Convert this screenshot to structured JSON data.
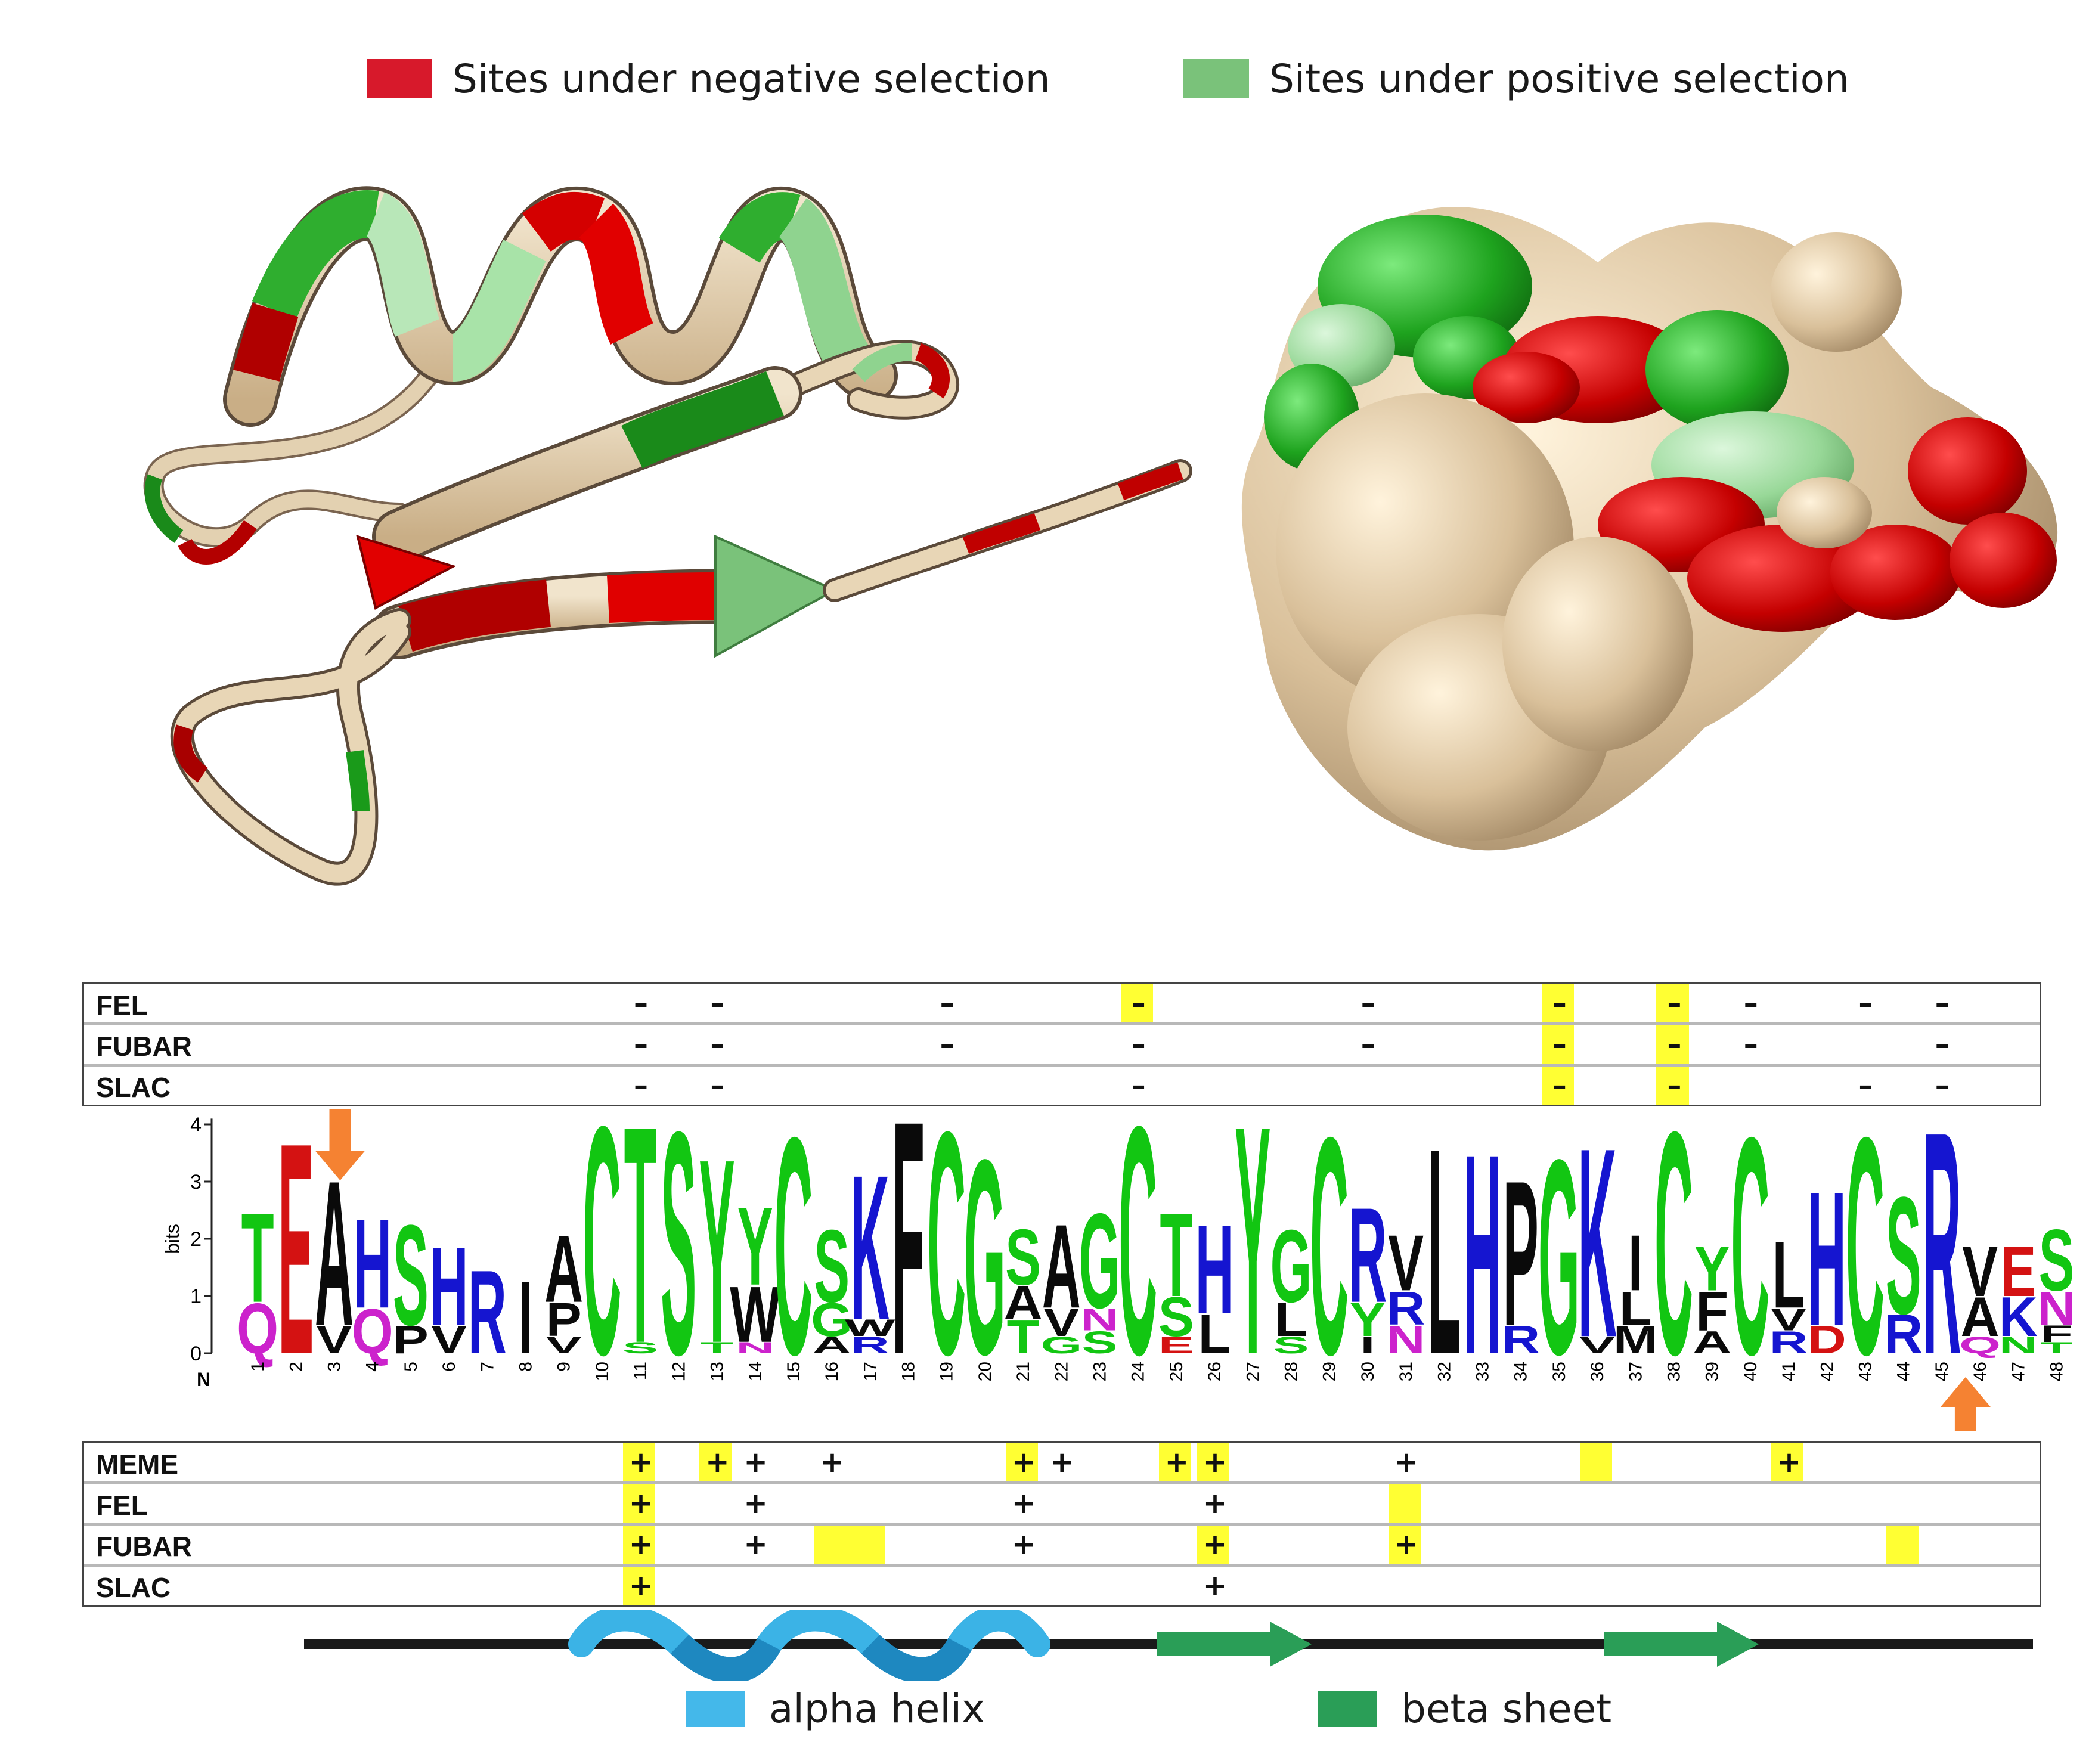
{
  "legend": {
    "negative": {
      "label": "Sites under negative selection",
      "color": "#d7192b"
    },
    "positive": {
      "label": "Sites under positive selection",
      "color": "#7ac27a"
    }
  },
  "panels": {
    "ribbon": {
      "icon": "protein-ribbon-structure"
    },
    "surface": {
      "icon": "protein-surface-structure"
    }
  },
  "colors": {
    "tan": "#d8c3a0",
    "red": "#d40000",
    "dark_red": "#a80000",
    "green": "#2aa82a",
    "light_green": "#a6e0a6",
    "highlight": "#ffff33",
    "arrow": "#f58232",
    "helix": "#3bb3e6",
    "sheet": "#2a9e57"
  },
  "negative_tracks": [
    {
      "label": "FEL",
      "minus": [
        11,
        13,
        19,
        24,
        30,
        35,
        38,
        40,
        43,
        45
      ],
      "highlight": [
        24,
        35,
        38
      ]
    },
    {
      "label": "FUBAR",
      "minus": [
        11,
        13,
        19,
        24,
        30,
        35,
        38,
        40,
        45
      ],
      "highlight": [
        35,
        38
      ]
    },
    {
      "label": "SLAC",
      "minus": [
        11,
        13,
        24,
        35,
        38,
        43,
        45
      ],
      "highlight": [
        35,
        38
      ]
    }
  ],
  "positive_tracks": [
    {
      "label": "MEME",
      "plus": [
        11,
        13,
        14,
        16,
        21,
        22,
        25,
        26,
        31,
        41
      ],
      "highlight": [
        [
          11,
          11
        ],
        [
          13,
          13
        ],
        [
          21,
          21
        ],
        [
          25,
          25
        ],
        [
          26,
          26
        ],
        [
          36,
          36
        ],
        [
          41,
          41
        ]
      ]
    },
    {
      "label": "FEL",
      "plus": [
        11,
        14,
        21,
        26
      ],
      "highlight": [
        [
          11,
          11
        ],
        [
          31,
          31
        ]
      ]
    },
    {
      "label": "FUBAR",
      "plus": [
        11,
        14,
        21,
        26,
        31
      ],
      "highlight": [
        [
          11,
          11
        ],
        [
          16,
          17
        ],
        [
          26,
          26
        ],
        [
          31,
          31
        ],
        [
          44,
          44
        ]
      ]
    },
    {
      "label": "SLAC",
      "plus": [
        11,
        26
      ],
      "highlight": [
        [
          11,
          11
        ]
      ]
    }
  ],
  "logo": {
    "ylabel": "bits",
    "yticks": [
      "0",
      "1",
      "2",
      "3",
      "4"
    ],
    "n_label": "N",
    "positions": [
      "1",
      "2",
      "3",
      "4",
      "5",
      "6",
      "7",
      "8",
      "9",
      "10",
      "11",
      "12",
      "13",
      "14",
      "15",
      "16",
      "17",
      "18",
      "19",
      "20",
      "21",
      "22",
      "23",
      "24",
      "25",
      "26",
      "27",
      "28",
      "29",
      "30",
      "31",
      "32",
      "33",
      "34",
      "35",
      "36",
      "37",
      "38",
      "39",
      "40",
      "41",
      "42",
      "43",
      "44",
      "45",
      "46",
      "47",
      "48"
    ],
    "arrow_positions": [
      3,
      45
    ],
    "columns": [
      [
        [
          "T",
          1.6,
          "g"
        ],
        [
          "Q",
          0.9,
          "m"
        ]
      ],
      [
        [
          "E",
          3.8,
          "r"
        ]
      ],
      [
        [
          "A",
          2.6,
          "k"
        ],
        [
          "V",
          0.5,
          "k"
        ]
      ],
      [
        [
          "H",
          1.6,
          "b"
        ],
        [
          "Q",
          0.8,
          "m"
        ]
      ],
      [
        [
          "S",
          1.8,
          "g"
        ],
        [
          "P",
          0.5,
          "k"
        ]
      ],
      [
        [
          "H",
          1.4,
          "b"
        ],
        [
          "V",
          0.5,
          "k"
        ]
      ],
      [
        [
          "R",
          1.5,
          "b"
        ]
      ],
      [
        [
          "I",
          1.3,
          "k"
        ]
      ],
      [
        [
          "A",
          1.2,
          "k"
        ],
        [
          "P",
          0.6,
          "k"
        ],
        [
          "V",
          0.3,
          "k"
        ]
      ],
      [
        [
          "C",
          4.1,
          "g"
        ]
      ],
      [
        [
          "T",
          3.9,
          "g"
        ],
        [
          "S",
          0.2,
          "g"
        ]
      ],
      [
        [
          "S",
          4.0,
          "g"
        ]
      ],
      [
        [
          "Y",
          3.3,
          "g"
        ],
        [
          "T",
          0.2,
          "g"
        ]
      ],
      [
        [
          "Y",
          1.4,
          "g"
        ],
        [
          "W",
          1.0,
          "k"
        ],
        [
          "N",
          0.2,
          "m"
        ]
      ],
      [
        [
          "C",
          3.9,
          "g"
        ]
      ],
      [
        [
          "S",
          1.3,
          "g"
        ],
        [
          "G",
          0.6,
          "g"
        ],
        [
          "A",
          0.3,
          "k"
        ]
      ],
      [
        [
          "K",
          2.6,
          "b"
        ],
        [
          "R",
          0.3,
          "b"
        ],
        [
          "W",
          0.3,
          "k"
        ]
      ],
      [
        [
          "F",
          4.2,
          "k"
        ]
      ],
      [
        [
          "C",
          4.0,
          "g"
        ]
      ],
      [
        [
          "G",
          3.5,
          "g"
        ]
      ],
      [
        [
          "S",
          1.0,
          "g"
        ],
        [
          "T",
          0.6,
          "g"
        ],
        [
          "A",
          0.6,
          "k"
        ]
      ],
      [
        [
          "A",
          1.5,
          "k"
        ],
        [
          "V",
          0.5,
          "k"
        ],
        [
          "G",
          0.3,
          "g"
        ]
      ],
      [
        [
          "G",
          1.7,
          "g"
        ],
        [
          "S",
          0.4,
          "g"
        ],
        [
          "N",
          0.4,
          "m"
        ]
      ],
      [
        [
          "C",
          4.1,
          "g"
        ]
      ],
      [
        [
          "T",
          1.5,
          "g"
        ],
        [
          "S",
          0.7,
          "g"
        ],
        [
          "E",
          0.3,
          "r"
        ]
      ],
      [
        [
          "H",
          1.6,
          "b"
        ],
        [
          "L",
          0.7,
          "k"
        ]
      ],
      [
        [
          "Y",
          4.1,
          "g"
        ]
      ],
      [
        [
          "G",
          1.3,
          "g"
        ],
        [
          "L",
          0.6,
          "k"
        ],
        [
          "S",
          0.3,
          "g"
        ]
      ],
      [
        [
          "C",
          3.9,
          "g"
        ]
      ],
      [
        [
          "R",
          1.7,
          "b"
        ],
        [
          "Y",
          0.6,
          "g"
        ],
        [
          "I",
          0.3,
          "k"
        ]
      ],
      [
        [
          "V",
          1.0,
          "k"
        ],
        [
          "R",
          0.6,
          "b"
        ],
        [
          "N",
          0.5,
          "m"
        ]
      ],
      [
        [
          "L",
          3.7,
          "k"
        ]
      ],
      [
        [
          "H",
          3.6,
          "b"
        ]
      ],
      [
        [
          "P",
          2.6,
          "k"
        ],
        [
          "R",
          0.5,
          "b"
        ]
      ],
      [
        [
          "G",
          3.5,
          "g"
        ]
      ],
      [
        [
          "K",
          3.4,
          "b"
        ],
        [
          "V",
          0.3,
          "k"
        ]
      ],
      [
        [
          "I",
          1.0,
          "k"
        ],
        [
          "L",
          0.6,
          "k"
        ],
        [
          "M",
          0.5,
          "k"
        ]
      ],
      [
        [
          "C",
          4.0,
          "g"
        ]
      ],
      [
        [
          "Y",
          0.8,
          "g"
        ],
        [
          "F",
          0.7,
          "k"
        ],
        [
          "A",
          0.4,
          "k"
        ]
      ],
      [
        [
          "C",
          3.9,
          "g"
        ]
      ],
      [
        [
          "L",
          1.2,
          "k"
        ],
        [
          "R",
          0.4,
          "b"
        ],
        [
          "V",
          0.4,
          "k"
        ]
      ],
      [
        [
          "H",
          2.4,
          "b"
        ],
        [
          "D",
          0.5,
          "r"
        ]
      ],
      [
        [
          "C",
          3.9,
          "g"
        ]
      ],
      [
        [
          "S",
          2.1,
          "g"
        ],
        [
          "R",
          0.7,
          "b"
        ]
      ],
      [
        [
          "R",
          4.0,
          "b"
        ]
      ],
      [
        [
          "V",
          0.9,
          "k"
        ],
        [
          "A",
          0.7,
          "k"
        ],
        [
          "Q",
          0.3,
          "m"
        ]
      ],
      [
        [
          "E",
          0.9,
          "r"
        ],
        [
          "K",
          0.7,
          "b"
        ],
        [
          "N",
          0.3,
          "g"
        ]
      ],
      [
        [
          "S",
          1.1,
          "g"
        ],
        [
          "N",
          0.6,
          "m"
        ],
        [
          "F",
          0.3,
          "k"
        ],
        [
          "T",
          0.2,
          "g"
        ]
      ]
    ]
  },
  "secondary_structure": {
    "helix_label": "alpha helix",
    "sheet_label": "beta sheet"
  }
}
